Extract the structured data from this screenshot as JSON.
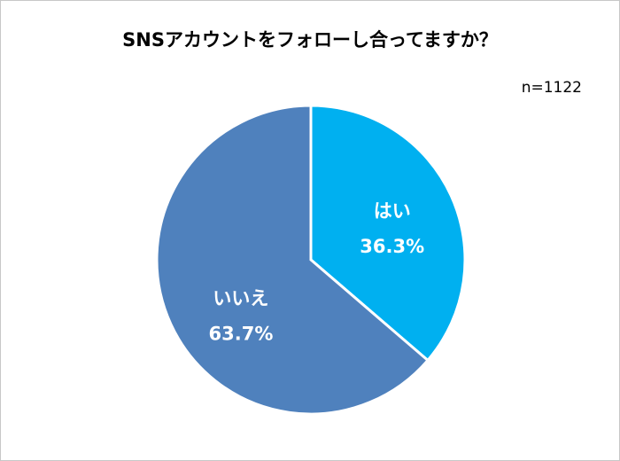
{
  "chart_data": {
    "type": "pie",
    "title": "SNSアカウントをフォローし合ってますか？",
    "sample_size_label": "n=1122",
    "categories": [
      "はい",
      "いいえ"
    ],
    "values": [
      36.3,
      63.7
    ],
    "value_labels": [
      "36.3%",
      "63.7%"
    ],
    "colors": [
      "#00B0F0",
      "#4F81BD"
    ],
    "start_angle": "top, clockwise",
    "legend": "none"
  }
}
